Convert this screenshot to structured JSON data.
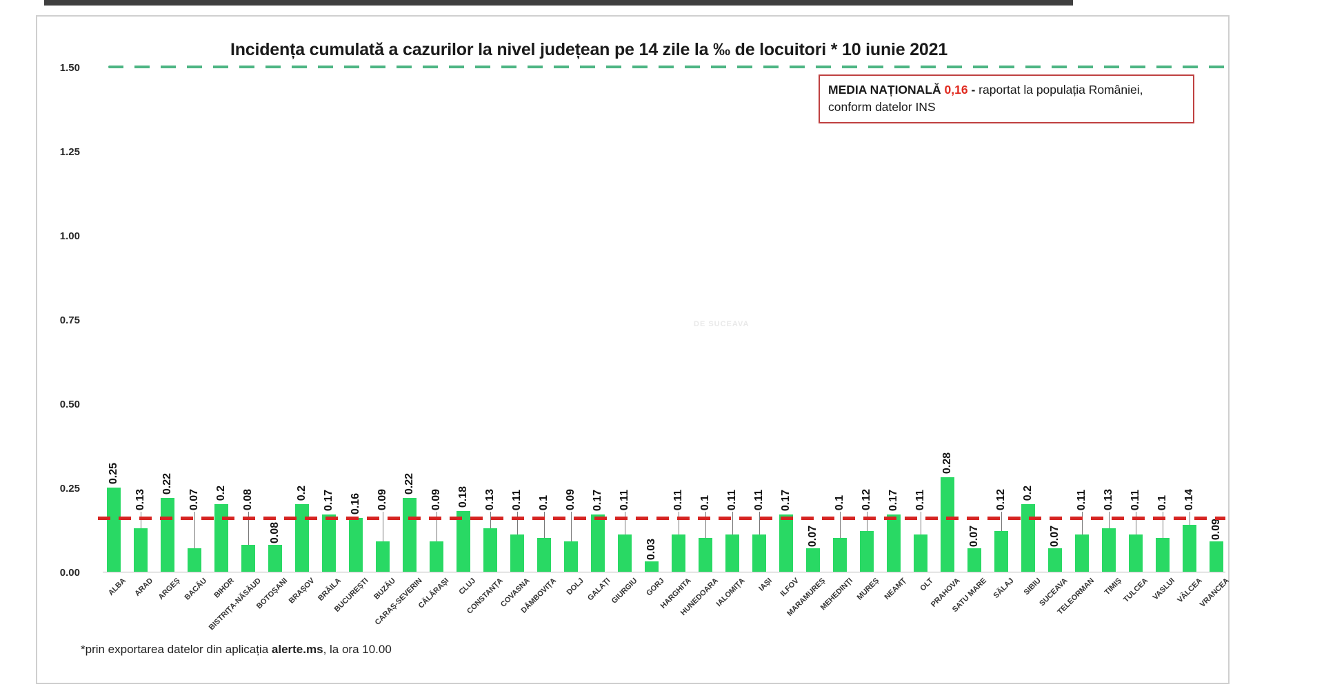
{
  "chart_data": {
    "type": "bar",
    "title": "Incidența cumulată a cazurilor la nivel județean pe 14 zile la ‰ de locuitori * 10 iunie 2021",
    "categories": [
      "ALBA",
      "ARAD",
      "ARGEȘ",
      "BACĂU",
      "BIHOR",
      "BISTRIȚA-NĂSĂUD",
      "BOTOȘANI",
      "BRAȘOV",
      "BRĂILA",
      "BUCUREȘTI",
      "BUZĂU",
      "CARAȘ-SEVERIN",
      "CĂLĂRAȘI",
      "CLUJ",
      "CONSTANȚA",
      "COVASNA",
      "DÂMBOVIȚA",
      "DOLJ",
      "GALAȚI",
      "GIURGIU",
      "GORJ",
      "HARGHITA",
      "HUNEDOARA",
      "IALOMIȚA",
      "IAȘI",
      "ILFOV",
      "MARAMUREȘ",
      "MEHEDINȚI",
      "MUREȘ",
      "NEAMȚ",
      "OLT",
      "PRAHOVA",
      "SATU MARE",
      "SĂLAJ",
      "SIBIU",
      "SUCEAVA",
      "TELEORMAN",
      "TIMIȘ",
      "TULCEA",
      "VASLUI",
      "VÂLCEA",
      "VRANCEA"
    ],
    "values": [
      0.25,
      0.13,
      0.22,
      0.07,
      0.2,
      0.08,
      0.08,
      0.2,
      0.17,
      0.16,
      0.09,
      0.22,
      0.09,
      0.18,
      0.13,
      0.11,
      0.1,
      0.09,
      0.17,
      0.11,
      0.03,
      0.11,
      0.1,
      0.11,
      0.11,
      0.17,
      0.07,
      0.1,
      0.12,
      0.17,
      0.11,
      0.28,
      0.07,
      0.12,
      0.2,
      0.07,
      0.11,
      0.13,
      0.11,
      0.1,
      0.14,
      0.09
    ],
    "ylim": [
      0,
      1.5
    ],
    "yticks": [
      "1.50",
      "1.25",
      "1.00",
      "0.75",
      "0.50",
      "0.25",
      "0.00"
    ],
    "grid": false,
    "legend": "none",
    "bar_color": "#29d964",
    "reference_lines": [
      {
        "value": 1.5,
        "style": "dashed",
        "color": "#4db583",
        "label": ""
      },
      {
        "value": 0.16,
        "style": "dashed",
        "color": "#d62422",
        "label": "media nationala"
      }
    ],
    "national_average": "0,16"
  },
  "annotation_box": {
    "label": "MEDIA NAȚIONALĂ",
    "value": "0,16",
    "separator": "-",
    "text": "raportat la populația României, conform datelor INS",
    "border_color": "#bf4040",
    "value_color": "#e02b20"
  },
  "footnote": {
    "prefix": "*prin exportarea datelor din aplicația ",
    "bold": "alerte.ms",
    "suffix": ", la ora 10.00"
  },
  "watermark": "DE SUCEAVA"
}
